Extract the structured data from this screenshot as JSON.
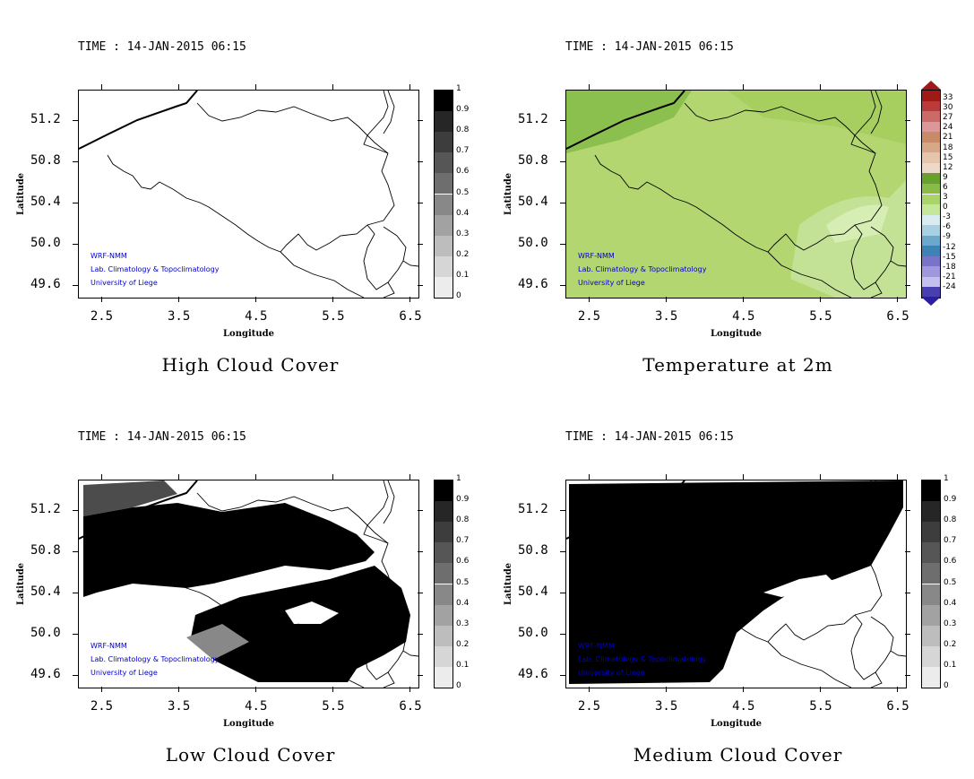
{
  "panels": [
    {
      "id": "high",
      "time": "TIME : 14-JAN-2015 06:15",
      "title": "High Cloud Cover",
      "fill": "high",
      "colorbar": "gray",
      "credits": [
        "WRF-NMM",
        "Lab. Climatology & Topoclimatology",
        "University of Liege"
      ]
    },
    {
      "id": "temp",
      "time": "TIME : 14-JAN-2015 06:15",
      "title": "Temperature at 2m",
      "fill": "temp",
      "colorbar": "temp",
      "credits": [
        "WRF-NMM",
        "Lab. Climatology & Topoclimatology",
        "University of Liege"
      ]
    },
    {
      "id": "low",
      "time": "TIME : 14-JAN-2015 06:15",
      "title": "Low Cloud Cover",
      "fill": "low",
      "colorbar": "gray",
      "credits": [
        "WRF-NMM",
        "Lab. Climatology & Topoclimatology",
        "University of Liege"
      ]
    },
    {
      "id": "medium",
      "time": "TIME : 14-JAN-2015 06:15",
      "title": "Medium Cloud Cover",
      "fill": "medium",
      "colorbar": "gray",
      "credits": [
        "WRF-NMM",
        "Lab. Climatology & Topoclimatology",
        "University of Liege"
      ]
    }
  ],
  "axes": {
    "xlabel": "Longitude",
    "ylabel": "Latitude",
    "xticks": [
      "2.5",
      "3.5",
      "4.5",
      "5.5",
      "6.5"
    ],
    "yticks": [
      "51.2",
      "50.8",
      "50.4",
      "50.0",
      "49.6"
    ],
    "xlim": [
      2.2,
      6.6
    ],
    "ylim": [
      49.49,
      51.5
    ]
  },
  "colorbars": {
    "gray": {
      "labels": [
        "1",
        "0.9",
        "0.8",
        "0.7",
        "0.6",
        "0.5",
        "0.4",
        "0.3",
        "0.2",
        "0.1",
        "0"
      ],
      "colors": [
        "#000000",
        "#262626",
        "#3d3d3d",
        "#565656",
        "#6e6e6e",
        "#888888",
        "#a2a2a2",
        "#bdbdbd",
        "#d6d6d6",
        "#ececec"
      ]
    },
    "temp": {
      "labels": [
        "33",
        "30",
        "27",
        "24",
        "21",
        "18",
        "15",
        "12",
        "9",
        "6",
        "3",
        "0",
        "-3",
        "-6",
        "-9",
        "-12",
        "-15",
        "-18",
        "-21",
        "-24"
      ],
      "colors": [
        "#a01919",
        "#bb3a3a",
        "#cc6a6a",
        "#dc9898",
        "#c98a6a",
        "#d7a887",
        "#e5c6ad",
        "#eed8c8",
        "#68a02e",
        "#88bb48",
        "#a8d468",
        "#c6e69a",
        "#d8ecf2",
        "#a7d0e2",
        "#6ba8cc",
        "#3f82b6",
        "#7a74c8",
        "#9f99dc",
        "#c4c0ee",
        "#4a3fae"
      ],
      "top_color": "#a01919",
      "bottom_color": "#2a1fa0"
    }
  },
  "chart_data": [
    {
      "type": "heatmap",
      "title": "High Cloud Cover",
      "subtitle": "TIME : 14-JAN-2015 06:15",
      "xlabel": "Longitude",
      "ylabel": "Latitude",
      "xlim": [
        2.2,
        6.6
      ],
      "ylim": [
        49.49,
        51.5
      ],
      "colorbar_range": [
        0,
        1
      ],
      "values_summary": "0 everywhere"
    },
    {
      "type": "heatmap",
      "title": "Temperature at 2m",
      "subtitle": "TIME : 14-JAN-2015 06:15",
      "xlabel": "Longitude",
      "ylabel": "Latitude",
      "xlim": [
        2.2,
        6.6
      ],
      "ylim": [
        49.49,
        51.5
      ],
      "colorbar_range": [
        -24,
        33
      ],
      "values_summary": "approximately 3 to 9 across domain; warmer (9) in northwest, cooler (~3) in southeast"
    },
    {
      "type": "heatmap",
      "title": "Low Cloud Cover",
      "subtitle": "TIME : 14-JAN-2015 06:15",
      "xlabel": "Longitude",
      "ylabel": "Latitude",
      "xlim": [
        2.2,
        6.6
      ],
      "ylim": [
        49.49,
        51.5
      ],
      "colorbar_range": [
        0,
        1
      ],
      "values_summary": "~1 over central band 50.6-51.2 and southern/eastern parts, 0 elsewhere"
    },
    {
      "type": "heatmap",
      "title": "Medium Cloud Cover",
      "subtitle": "TIME : 14-JAN-2015 06:15",
      "xlabel": "Longitude",
      "ylabel": "Latitude",
      "xlim": [
        2.2,
        6.6
      ],
      "ylim": [
        49.49,
        51.5
      ],
      "colorbar_range": [
        0,
        1
      ],
      "values_summary": "~1 over north and west, 0 in southeast"
    }
  ]
}
